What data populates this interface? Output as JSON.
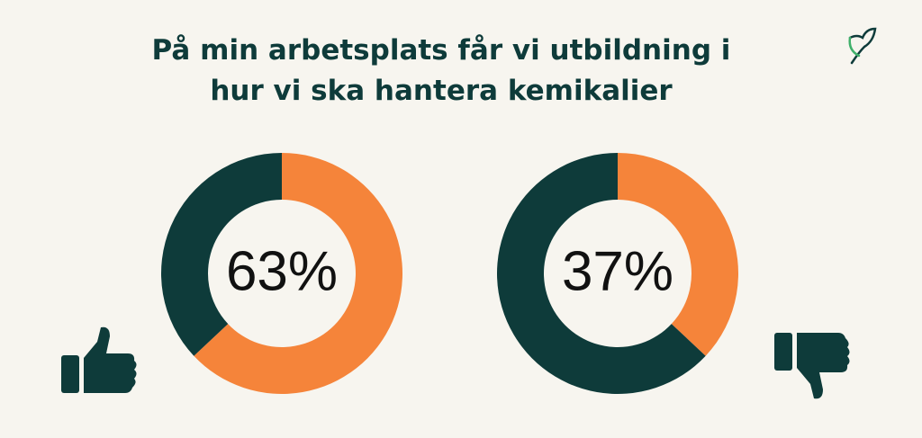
{
  "title": [
    "På min arbetsplats får vi utbildning i",
    "hur vi ska hantera kemikalier"
  ],
  "chart_data": [
    {
      "type": "donut",
      "values": [
        63,
        37
      ],
      "value_labels": [
        "63%",
        null
      ],
      "colors": [
        "#f5843a",
        "#0e3b3a"
      ]
    },
    {
      "type": "donut",
      "values": [
        37,
        63
      ],
      "value_labels": [
        "37%",
        null
      ],
      "colors": [
        "#f5843a",
        "#0e3b3a"
      ]
    }
  ]
}
